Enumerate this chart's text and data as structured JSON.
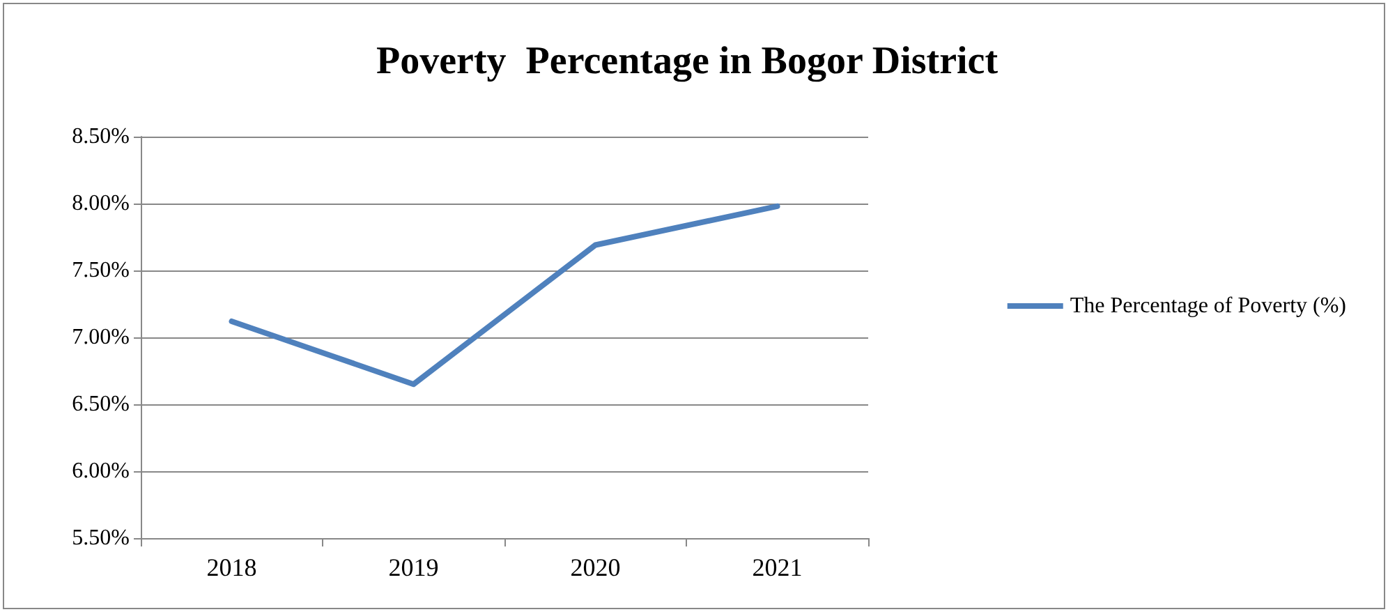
{
  "chart_data": {
    "type": "line",
    "title": "Poverty  Percentage in Bogor District",
    "categories": [
      "2018",
      "2019",
      "2020",
      "2021"
    ],
    "series": [
      {
        "name": "The Percentage of Poverty (%)",
        "color": "#4f81bd",
        "values": [
          7.12,
          6.65,
          7.69,
          7.98
        ]
      }
    ],
    "ylim": [
      5.5,
      8.5
    ],
    "yticks": [
      {
        "value": 5.5,
        "label": "5.50%"
      },
      {
        "value": 6,
        "label": "6.00%"
      },
      {
        "value": 6.5,
        "label": "6.50%"
      },
      {
        "value": 7,
        "label": "7.00%"
      },
      {
        "value": 7.5,
        "label": "7.50%"
      },
      {
        "value": 8,
        "label": "8.00%"
      },
      {
        "value": 8.5,
        "label": "8.50%"
      }
    ],
    "grid": "y",
    "legend": "right",
    "marker": "none",
    "line_style": "solid"
  }
}
